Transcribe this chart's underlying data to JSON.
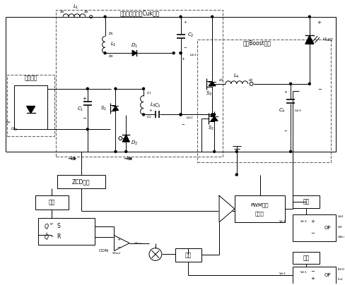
{
  "title_cuk": "带耦合电感降压Cuk单元",
  "title_boost": "辅助Boost单元",
  "title_rect": "整流单元",
  "bg_color": "#ffffff",
  "lc": "#000000",
  "dc": "#555555",
  "lw": 0.7,
  "fig_w": 4.89,
  "fig_h": 4.04,
  "dpi": 100
}
